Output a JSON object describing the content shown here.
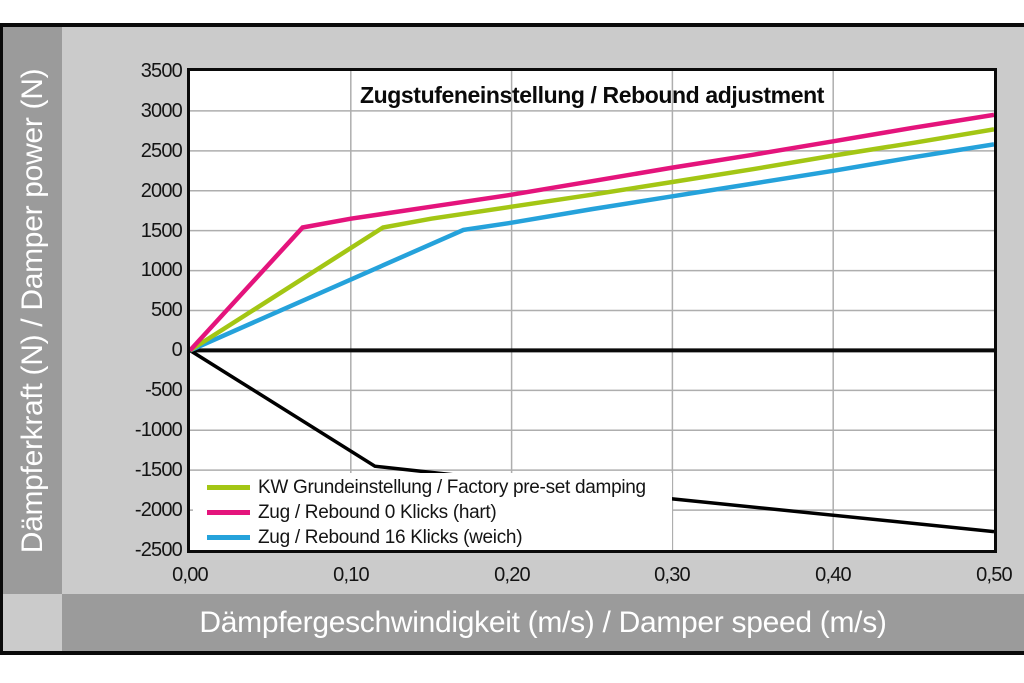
{
  "chart_data": {
    "type": "line",
    "title": "Zugstufeneinstellung / Rebound adjustment",
    "xlabel": "Dämpfergeschwindigkeit (m/s) / Damper speed (m/s)",
    "ylabel": "Dämpferkraft (N) / Damper power (N)",
    "xlim": [
      0,
      0.5
    ],
    "ylim": [
      -2500,
      3500
    ],
    "x_tick_step": 0.1,
    "y_tick_step": 500,
    "grid": true,
    "legend_position": "inside-bottom-left",
    "xticks": [
      {
        "value": 0.0,
        "label": "0,00"
      },
      {
        "value": 0.1,
        "label": "0,10"
      },
      {
        "value": 0.2,
        "label": "0,20"
      },
      {
        "value": 0.3,
        "label": "0,30"
      },
      {
        "value": 0.4,
        "label": "0,40"
      },
      {
        "value": 0.5,
        "label": "0,50"
      }
    ],
    "yticks": [
      {
        "value": 3500,
        "label": "3500"
      },
      {
        "value": 3000,
        "label": "3000"
      },
      {
        "value": 2500,
        "label": "2500"
      },
      {
        "value": 2000,
        "label": "2000"
      },
      {
        "value": 1500,
        "label": "1500"
      },
      {
        "value": 1000,
        "label": "1000"
      },
      {
        "value": 500,
        "label": "500"
      },
      {
        "value": 0,
        "label": "0"
      },
      {
        "value": -500,
        "label": "-500"
      },
      {
        "value": -1000,
        "label": "-1000"
      },
      {
        "value": -1500,
        "label": "-1500"
      },
      {
        "value": -2000,
        "label": "-2000"
      },
      {
        "value": -2500,
        "label": "-2500"
      }
    ],
    "series": [
      {
        "name": "KW Grundeinstellung / Factory pre-set damping",
        "color": "#a3c614",
        "in_legend": true,
        "points": [
          [
            0,
            0
          ],
          [
            0.12,
            1540
          ],
          [
            0.15,
            1650
          ],
          [
            0.2,
            1800
          ],
          [
            0.25,
            1950
          ],
          [
            0.3,
            2110
          ],
          [
            0.35,
            2270
          ],
          [
            0.4,
            2440
          ],
          [
            0.45,
            2600
          ],
          [
            0.5,
            2770
          ]
        ]
      },
      {
        "name": "Zug / Rebound 0 Klicks (hart)",
        "color": "#e4147c",
        "in_legend": true,
        "points": [
          [
            0,
            0
          ],
          [
            0.07,
            1540
          ],
          [
            0.1,
            1650
          ],
          [
            0.15,
            1800
          ],
          [
            0.2,
            1950
          ],
          [
            0.25,
            2120
          ],
          [
            0.3,
            2290
          ],
          [
            0.35,
            2450
          ],
          [
            0.4,
            2620
          ],
          [
            0.45,
            2790
          ],
          [
            0.5,
            2950
          ]
        ]
      },
      {
        "name": "Zug / Rebound 16 Klicks (weich)",
        "color": "#25a2db",
        "in_legend": true,
        "points": [
          [
            0,
            0
          ],
          [
            0.17,
            1510
          ],
          [
            0.2,
            1600
          ],
          [
            0.25,
            1770
          ],
          [
            0.3,
            1930
          ],
          [
            0.35,
            2090
          ],
          [
            0.4,
            2250
          ],
          [
            0.45,
            2420
          ],
          [
            0.5,
            2580
          ]
        ]
      },
      {
        "name": "unlabeled-black-curve",
        "color": "#000000",
        "in_legend": false,
        "points": [
          [
            0,
            0
          ],
          [
            0.115,
            -1450
          ],
          [
            0.3,
            -1860
          ],
          [
            0.5,
            -2270
          ]
        ]
      }
    ],
    "colors": {
      "frame_bars": "#9b9b9b",
      "chart_background": "#cbcbcb",
      "plot_background": "#ffffff",
      "gridline": "#aeaeae",
      "axis_and_border": "#0a0a0a",
      "bar_text": "#ffffff"
    }
  }
}
